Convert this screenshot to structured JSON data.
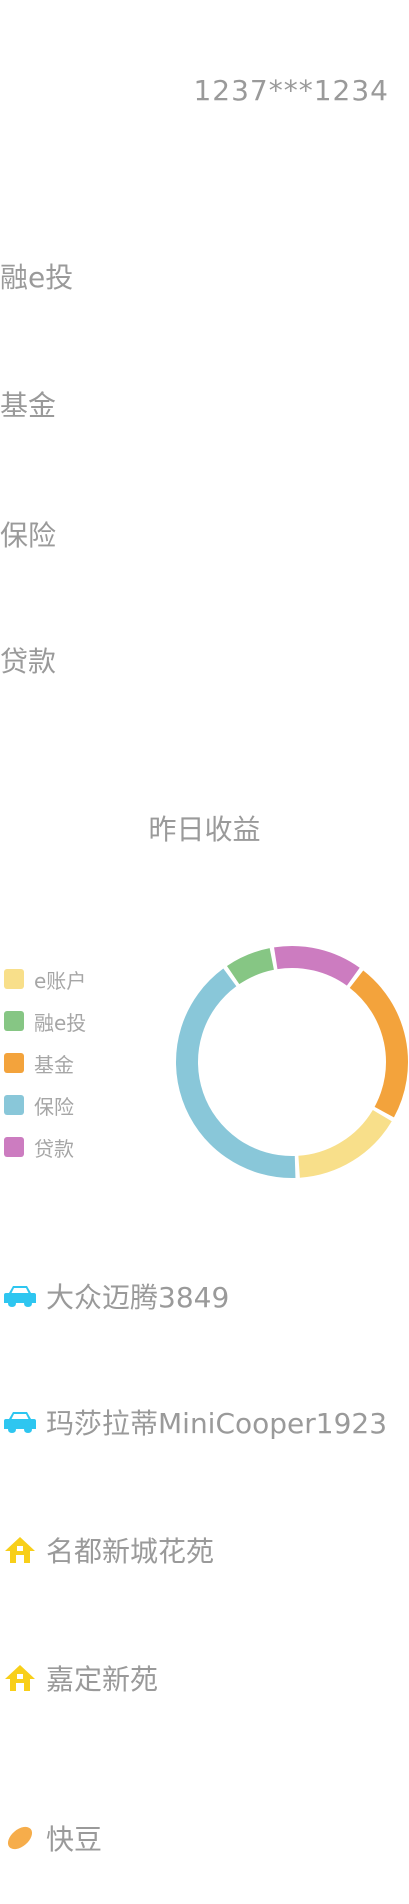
{
  "account": {
    "phone": "1237***1234"
  },
  "menu": [
    {
      "label": "融e投"
    },
    {
      "label": "基金"
    },
    {
      "label": "保险"
    },
    {
      "label": "贷款"
    }
  ],
  "earnings": {
    "title": "昨日收益"
  },
  "colors": {
    "e_account": "#f8df8a",
    "rong_e_tou": "#86c684",
    "fund": "#f3a33c",
    "insurance": "#89c7d9",
    "loan": "#cc7cc0",
    "car_icon": "#2ec6f0",
    "house_icon": "#f8cf19",
    "bean_icon": "#f6ad4b"
  },
  "chart_data": {
    "type": "pie",
    "categories": [
      "e账户",
      "融e投",
      "基金",
      "保险",
      "贷款"
    ],
    "values": [
      16,
      7,
      23,
      41,
      13
    ],
    "legend": "left",
    "title": ""
  },
  "assets": [
    {
      "icon": "car-icon",
      "label": "大众迈腾3849"
    },
    {
      "icon": "car-icon",
      "label": "玛莎拉蒂MiniCooper1923"
    },
    {
      "icon": "house-icon",
      "label": "名都新城花苑"
    },
    {
      "icon": "house-icon",
      "label": "嘉定新苑"
    },
    {
      "icon": "bean-icon",
      "label": "快豆"
    }
  ]
}
